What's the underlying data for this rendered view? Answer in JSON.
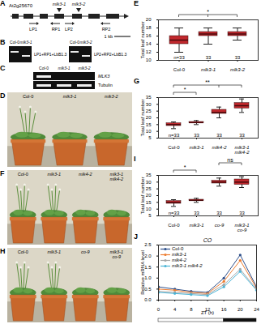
{
  "panels": {
    "A": {
      "letter": "A",
      "gene": "At2g25670",
      "insertions": [
        "mlk3-1",
        "mlk3-2"
      ],
      "primers": [
        "LP1",
        "RP1",
        "LP2",
        "RP2"
      ],
      "scale_bar": "1 kb"
    },
    "B": {
      "letter": "B",
      "gels": [
        {
          "lanes": [
            "Col-0",
            "mlk3-1"
          ],
          "primers": "LP1+RP1+LbB1.3"
        },
        {
          "lanes": [
            "Col-0",
            "mlk3-2"
          ],
          "primers": "LP2+RP2+LbB1.3"
        }
      ]
    },
    "C": {
      "letter": "C",
      "lanes": [
        "Col-0",
        "mlk3-1",
        "mlk3-2"
      ],
      "rows": [
        {
          "gene": "MLK3",
          "bands": [
            true,
            false,
            false
          ]
        },
        {
          "gene": "Tubulin",
          "bands": [
            true,
            true,
            true
          ]
        }
      ]
    },
    "D": {
      "letter": "D",
      "plants": [
        "Col-0",
        "mlk3-1",
        "mlk3-2"
      ],
      "bolting": [
        true,
        false,
        false
      ]
    },
    "F": {
      "letter": "F",
      "plants": [
        "Col-0",
        "mlk3-1",
        "mlk4-2",
        "mlk3-1 mlk4-2"
      ],
      "bolting": [
        true,
        true,
        false,
        false
      ]
    },
    "H": {
      "letter": "H",
      "plants": [
        "Col-0",
        "mlk3-1",
        "co-9",
        "mlk3-1 co-9"
      ],
      "bolting": [
        true,
        true,
        false,
        false
      ]
    }
  },
  "chart_data": [
    {
      "letter": "E",
      "type": "box",
      "categories": [
        "Col-0",
        "mlk3-1",
        "mlk3-2"
      ],
      "boxes": [
        {
          "min": 12,
          "q1": 14,
          "median": 15,
          "q3": 16,
          "max": 18
        },
        {
          "min": 14,
          "q1": 16,
          "median": 16.5,
          "q3": 17,
          "max": 18
        },
        {
          "min": 15,
          "q1": 16,
          "median": 16.5,
          "q3": 17,
          "max": 18
        }
      ],
      "n_labels": [
        "n=33",
        "33",
        "33"
      ],
      "comparisons": [
        {
          "from": "Col-0",
          "to": [
            "mlk3-1",
            "mlk3-2"
          ],
          "label": "*"
        }
      ],
      "y_label": "Total leaf number",
      "ylim": [
        10,
        20
      ],
      "yticks": [
        10,
        12,
        14,
        16,
        18,
        20
      ],
      "color": "#c0282d",
      "grid": false
    },
    {
      "letter": "G",
      "type": "box",
      "categories": [
        "Col-0",
        "mlk3-1",
        "mlk4-2",
        "mlk3-1 mlk4-2"
      ],
      "boxes": [
        {
          "min": 12,
          "q1": 14,
          "median": 15,
          "q3": 16,
          "max": 17
        },
        {
          "min": 15,
          "q1": 16,
          "median": 16.5,
          "q3": 17,
          "max": 18
        },
        {
          "min": 20,
          "q1": 23,
          "median": 24,
          "q3": 26,
          "max": 28
        },
        {
          "min": 24,
          "q1": 27,
          "median": 29,
          "q3": 31,
          "max": 34
        }
      ],
      "n_labels": [
        "n=33",
        "33",
        "33",
        "33"
      ],
      "comparisons": [
        {
          "from": "Col-0",
          "to": [
            "mlk3-1"
          ],
          "label": "*"
        },
        {
          "from": "Col-0",
          "to": [
            "mlk4-2",
            "mlk3-1 mlk4-2"
          ],
          "label": "**"
        }
      ],
      "y_label": "Total leaf number",
      "ylim": [
        5,
        35
      ],
      "yticks": [
        5,
        10,
        15,
        20,
        25,
        30,
        35
      ],
      "color": "#c0282d",
      "grid": false
    },
    {
      "letter": "I",
      "type": "box",
      "categories": [
        "Col-0",
        "mlk3-1",
        "co-9",
        "mlk3-1 co-9"
      ],
      "boxes": [
        {
          "min": 12,
          "q1": 14,
          "median": 15,
          "q3": 16,
          "max": 17
        },
        {
          "min": 15,
          "q1": 16,
          "median": 16.5,
          "q3": 17,
          "max": 18
        },
        {
          "min": 27,
          "q1": 29,
          "median": 30,
          "q3": 31,
          "max": 33
        },
        {
          "min": 26,
          "q1": 28,
          "median": 30,
          "q3": 32,
          "max": 34
        }
      ],
      "n_labels": [
        "n=33",
        "33",
        "33",
        "33"
      ],
      "comparisons": [
        {
          "from": "Col-0",
          "to": [
            "mlk3-1"
          ],
          "label": "*"
        },
        {
          "from": "co-9",
          "to": [
            "mlk3-1 co-9"
          ],
          "label": "ns"
        }
      ],
      "y_label": "Total leaf number",
      "ylim": [
        5,
        35
      ],
      "yticks": [
        5,
        10,
        15,
        20,
        25,
        30,
        35
      ],
      "color": "#c0282d",
      "grid": false
    },
    {
      "letter": "J",
      "type": "line",
      "title": "CO",
      "x_label": "ZT (h)",
      "y_label": "Relative mRNA level",
      "x": [
        0,
        4,
        8,
        12,
        16,
        20,
        24
      ],
      "series": [
        {
          "name": "Col-0",
          "color": "#2e4f8a",
          "values": [
            0.6,
            0.5,
            0.4,
            0.35,
            1.0,
            2.05,
            0.6
          ]
        },
        {
          "name": "mlk3-1",
          "color": "#ed7d31",
          "values": [
            0.5,
            0.45,
            0.35,
            0.3,
            0.85,
            1.8,
            0.55
          ]
        },
        {
          "name": "mlk4-2",
          "color": "#a5a5a5",
          "values": [
            0.4,
            0.35,
            0.3,
            0.25,
            0.7,
            1.4,
            0.5
          ]
        },
        {
          "name": "mlk3-1 mlk4-2",
          "color": "#4bb4d6",
          "values": [
            0.35,
            0.3,
            0.25,
            0.2,
            0.6,
            1.3,
            0.45
          ]
        }
      ],
      "photoperiod": {
        "light": [
          0,
          16
        ],
        "dark": [
          16,
          24
        ]
      },
      "xlim": [
        0,
        24
      ],
      "xticks": [
        0,
        4,
        8,
        12,
        16,
        20,
        24
      ],
      "ylim": [
        0,
        2.5
      ],
      "yticks": [
        {
          "value": 0,
          "label": "0.0"
        },
        {
          "value": 0.5,
          "label": "0.5"
        },
        {
          "value": 1,
          "label": "1.0"
        },
        {
          "value": 1.5,
          "label": "1.5"
        },
        {
          "value": 2,
          "label": "2.0"
        },
        {
          "value": 2.5,
          "label": "2.5"
        }
      ],
      "marker": "circle",
      "legend": "top-left",
      "grid": false
    }
  ]
}
